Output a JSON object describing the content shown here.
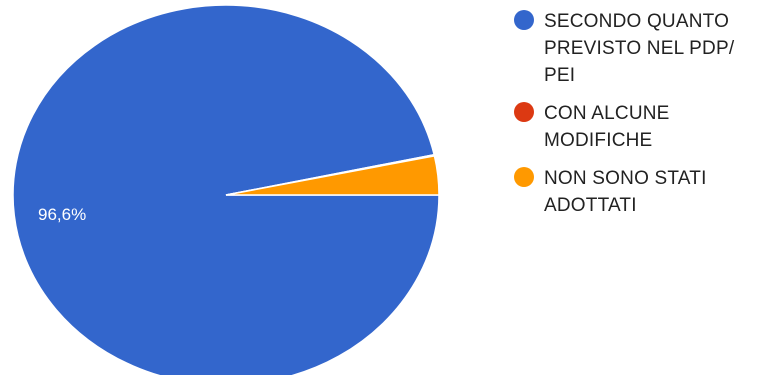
{
  "chart_data": {
    "type": "pie",
    "slices": [
      {
        "label": "SECONDO QUANTO PREVISTO NEL PDP/ PEI",
        "value": 96.6,
        "color": "#3366cc"
      },
      {
        "label": "CON ALCUNE MODIFICHE",
        "value": 0.1,
        "color": "#dc3912"
      },
      {
        "label": "NON SONO STATI ADOTTATI",
        "value": 3.3,
        "color": "#ff9900"
      }
    ],
    "data_labels": [
      "96,6%"
    ],
    "legend_position": "right"
  }
}
